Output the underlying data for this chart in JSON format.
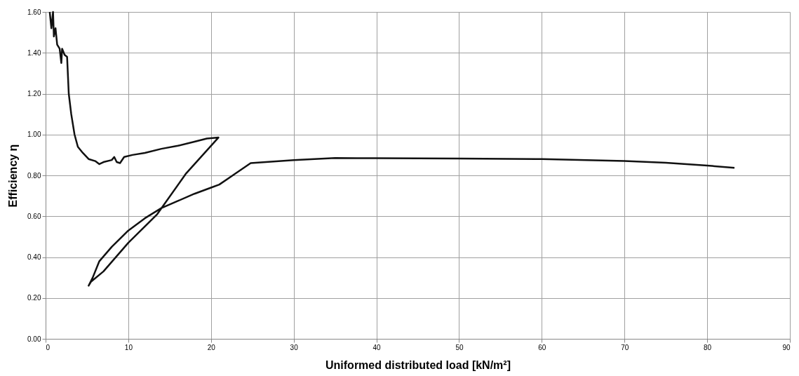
{
  "chart_data": {
    "type": "line",
    "xlabel": "Uniformed distributed load [kN/m²]",
    "ylabel": "Efficiency  η",
    "series": [
      {
        "color": "#111111",
        "x": [
          0.5,
          0.7,
          0.9,
          1.0,
          1.2,
          1.4,
          1.7,
          1.9,
          2.0,
          2.3,
          2.6,
          2.8,
          3.1,
          3.5,
          3.9,
          4.5,
          5.2,
          6.0,
          6.5,
          7.0,
          8.0,
          8.3,
          8.6,
          9.0,
          9.5,
          10.5,
          12,
          14,
          16,
          18,
          19.5,
          20.9,
          17,
          13.5,
          10,
          7,
          5.5,
          5.2,
          5.7,
          6.5,
          8,
          10,
          12,
          14,
          16,
          18,
          20,
          21,
          23,
          24.8,
          30,
          35,
          40,
          50,
          60,
          70,
          75,
          80,
          83.3
        ],
        "values": [
          1.6,
          1.52,
          1.6,
          1.48,
          1.52,
          1.44,
          1.42,
          1.35,
          1.42,
          1.39,
          1.38,
          1.2,
          1.1,
          1.0,
          0.94,
          0.91,
          0.88,
          0.87,
          0.855,
          0.865,
          0.875,
          0.89,
          0.865,
          0.86,
          0.89,
          0.9,
          0.91,
          0.93,
          0.945,
          0.965,
          0.98,
          0.985,
          0.81,
          0.61,
          0.47,
          0.33,
          0.28,
          0.26,
          0.3,
          0.38,
          0.45,
          0.53,
          0.59,
          0.64,
          0.675,
          0.71,
          0.74,
          0.755,
          0.81,
          0.86,
          0.875,
          0.885,
          0.884,
          0.882,
          0.88,
          0.87,
          0.862,
          0.848,
          0.837
        ]
      }
    ],
    "xlim": [
      0,
      90
    ],
    "xticks": [
      0,
      10,
      20,
      30,
      40,
      50,
      60,
      70,
      80,
      90
    ],
    "ylim": [
      0,
      1.6
    ],
    "yticks": [
      {
        "value": 0,
        "label": "0.00"
      },
      {
        "value": 0.2,
        "label": "0.20"
      },
      {
        "value": 0.4,
        "label": "0.40"
      },
      {
        "value": 0.6,
        "label": "0.60"
      },
      {
        "value": 0.8,
        "label": "0.80"
      },
      {
        "value": 1.0,
        "label": "1.00"
      },
      {
        "value": 1.2,
        "label": "1.20"
      },
      {
        "value": 1.4,
        "label": "1.40"
      },
      {
        "value": 1.6,
        "label": "1.60"
      }
    ],
    "grid": true,
    "legend": false,
    "marker": "none",
    "line_style": "solid"
  }
}
